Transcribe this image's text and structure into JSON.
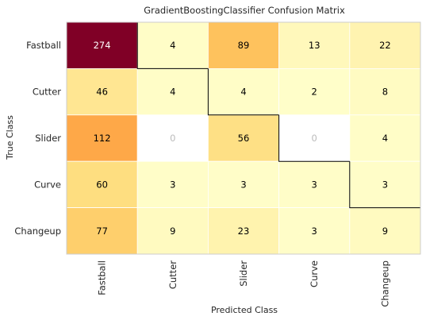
{
  "chart_data": {
    "type": "heatmap",
    "title": "GradientBoostingClassifier Confusion Matrix",
    "xlabel": "Predicted Class",
    "ylabel": "True Class",
    "x_categories": [
      "Fastball",
      "Cutter",
      "Slider",
      "Curve",
      "Changeup"
    ],
    "y_categories": [
      "Fastball",
      "Cutter",
      "Slider",
      "Curve",
      "Changeup"
    ],
    "values": [
      [
        274,
        4,
        89,
        13,
        22
      ],
      [
        46,
        4,
        4,
        2,
        8
      ],
      [
        112,
        0,
        56,
        0,
        4
      ],
      [
        60,
        3,
        3,
        3,
        3
      ],
      [
        77,
        9,
        23,
        3,
        9
      ]
    ],
    "zero_display": "0",
    "colormap": "YlOrRd",
    "zero_cell_color": "#ffffff",
    "zero_text_color": "#bbbbbb",
    "text_color": "#000000",
    "highlight_text_color": "#ffffff",
    "diagonal_outlined": true
  }
}
